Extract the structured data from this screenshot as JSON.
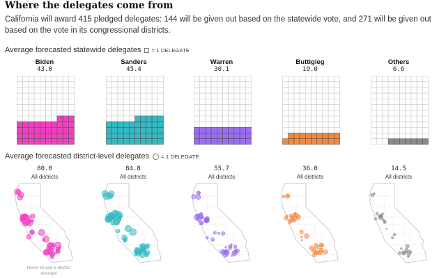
{
  "header": {
    "title": "Where the delegates come from",
    "intro": "California will award 415 pledged delegates: 144 will be given out based on the statewide vote, and 271 will be given out based on the vote in its congressional districts."
  },
  "statewide": {
    "label": "Average forecasted statewide delegates",
    "legend_text": "= 1 DELEGATE"
  },
  "district": {
    "label": "Average forecasted district-level delegates",
    "legend_text": "= 1 DELEGATE",
    "hover_note": "Hover to see a district average"
  },
  "chart_data": [
    {
      "type": "waffle",
      "title": "Average forecasted statewide delegates",
      "unit": "1 delegate",
      "categories": [
        "Biden",
        "Sanders",
        "Warren",
        "Buttigieg",
        "Others"
      ],
      "values": [
        43.0,
        45.4,
        30.1,
        19.0,
        6.6
      ],
      "value_labels": [
        "43.0",
        "45.4",
        "30.1",
        "19.0",
        "6.6"
      ],
      "colors": [
        "#f23fc1",
        "#35b9c3",
        "#9a6df0",
        "#f5893b",
        "#8a8a8a"
      ]
    },
    {
      "type": "scatter-map",
      "title": "Average forecasted district-level delegates",
      "unit": "1 delegate",
      "categories": [
        "Biden",
        "Sanders",
        "Warren",
        "Buttigieg",
        "Others"
      ],
      "values": [
        80.0,
        84.8,
        55.7,
        36.0,
        14.5
      ],
      "value_labels": [
        "80.0",
        "84.8",
        "55.7",
        "36.0",
        "14.5"
      ],
      "sublabel": "All districts",
      "colors": [
        "#f23fc1",
        "#35b9c3",
        "#9a6df0",
        "#f5893b",
        "#8a8a8a"
      ]
    }
  ]
}
